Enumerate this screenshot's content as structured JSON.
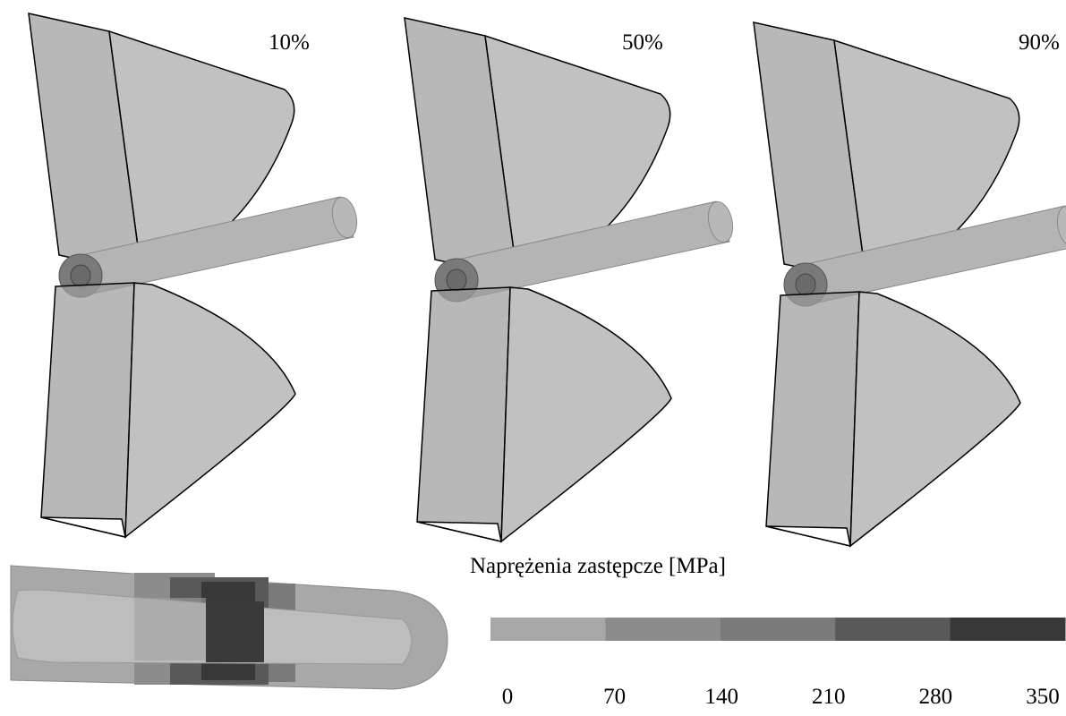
{
  "stages": [
    "10%",
    "50%",
    "90%"
  ],
  "colorbar": {
    "title": "Naprężenia zastępcze [MPa]",
    "ticks": [
      0,
      70,
      140,
      210,
      280,
      350
    ],
    "colors": [
      "#a8a8a8",
      "#8c8c8c",
      "#7a7a7a",
      "#595959",
      "#383838"
    ]
  }
}
